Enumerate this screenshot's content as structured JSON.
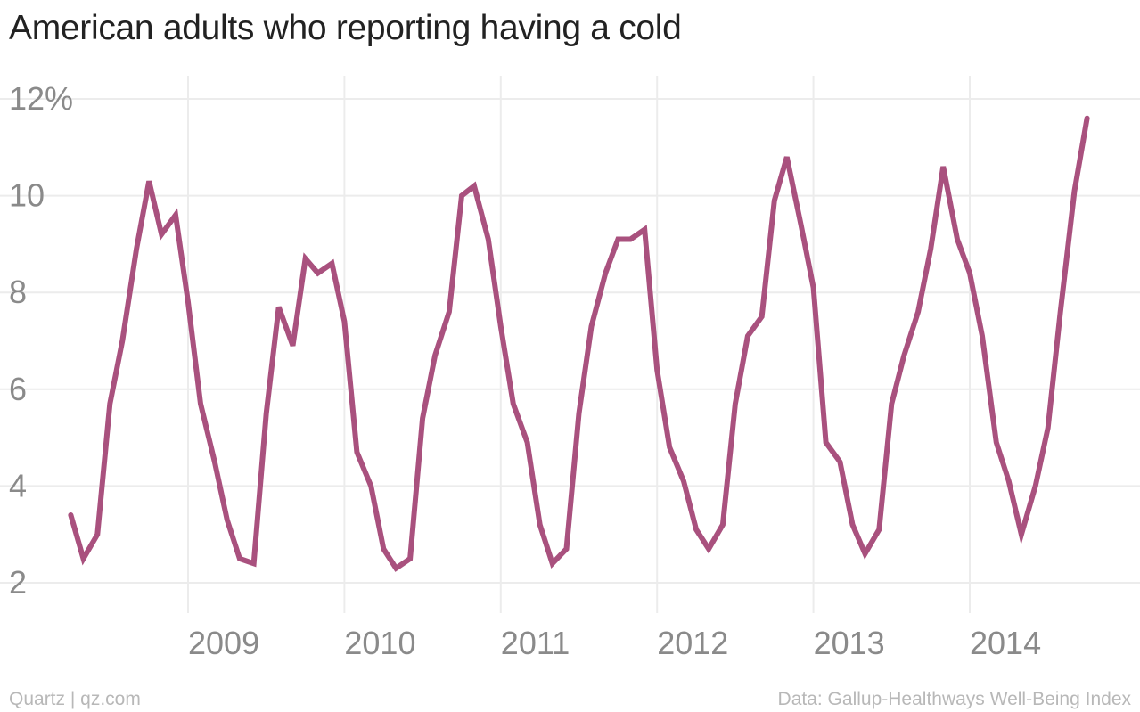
{
  "chart_data": {
    "type": "line",
    "title": "American adults who reporting having a cold",
    "xlabel": "",
    "ylabel": "",
    "ylim": [
      2,
      12
    ],
    "yticks": [
      2,
      4,
      6,
      8,
      10,
      12
    ],
    "ytick_labels": [
      "2",
      "4",
      "6",
      "8",
      "10",
      "12%"
    ],
    "xlim": [
      2008.0,
      2014.88
    ],
    "xticks": [
      2009,
      2010,
      2011,
      2012,
      2013,
      2014
    ],
    "xtick_labels": [
      "2009",
      "2010",
      "2011",
      "2012",
      "2013",
      "2014"
    ],
    "grid": true,
    "legend": "none",
    "series": [
      {
        "color": "#a9517e",
        "points": [
          [
            2008.25,
            3.4
          ],
          [
            2008.33,
            2.5
          ],
          [
            2008.42,
            3.0
          ],
          [
            2008.5,
            5.7
          ],
          [
            2008.58,
            7.0
          ],
          [
            2008.67,
            8.9
          ],
          [
            2008.75,
            10.3
          ],
          [
            2008.83,
            9.2
          ],
          [
            2008.92,
            9.6
          ],
          [
            2009.0,
            7.8
          ],
          [
            2009.08,
            5.7
          ],
          [
            2009.17,
            4.5
          ],
          [
            2009.25,
            3.3
          ],
          [
            2009.33,
            2.5
          ],
          [
            2009.42,
            2.4
          ],
          [
            2009.5,
            5.5
          ],
          [
            2009.58,
            7.7
          ],
          [
            2009.67,
            6.9
          ],
          [
            2009.75,
            8.7
          ],
          [
            2009.83,
            8.4
          ],
          [
            2009.92,
            8.6
          ],
          [
            2010.0,
            7.4
          ],
          [
            2010.08,
            4.7
          ],
          [
            2010.17,
            4.0
          ],
          [
            2010.25,
            2.7
          ],
          [
            2010.33,
            2.3
          ],
          [
            2010.42,
            2.5
          ],
          [
            2010.5,
            5.4
          ],
          [
            2010.58,
            6.7
          ],
          [
            2010.67,
            7.6
          ],
          [
            2010.75,
            10.0
          ],
          [
            2010.83,
            10.2
          ],
          [
            2010.92,
            9.1
          ],
          [
            2011.0,
            7.3
          ],
          [
            2011.08,
            5.7
          ],
          [
            2011.17,
            4.9
          ],
          [
            2011.25,
            3.2
          ],
          [
            2011.33,
            2.4
          ],
          [
            2011.42,
            2.7
          ],
          [
            2011.5,
            5.5
          ],
          [
            2011.58,
            7.3
          ],
          [
            2011.67,
            8.4
          ],
          [
            2011.75,
            9.1
          ],
          [
            2011.83,
            9.1
          ],
          [
            2011.92,
            9.3
          ],
          [
            2012.0,
            6.4
          ],
          [
            2012.08,
            4.8
          ],
          [
            2012.17,
            4.1
          ],
          [
            2012.25,
            3.1
          ],
          [
            2012.33,
            2.7
          ],
          [
            2012.42,
            3.2
          ],
          [
            2012.5,
            5.7
          ],
          [
            2012.58,
            7.1
          ],
          [
            2012.67,
            7.5
          ],
          [
            2012.75,
            9.9
          ],
          [
            2012.83,
            10.8
          ],
          [
            2012.92,
            9.4
          ],
          [
            2013.0,
            8.1
          ],
          [
            2013.08,
            4.9
          ],
          [
            2013.17,
            4.5
          ],
          [
            2013.25,
            3.2
          ],
          [
            2013.33,
            2.6
          ],
          [
            2013.42,
            3.1
          ],
          [
            2013.5,
            5.7
          ],
          [
            2013.58,
            6.7
          ],
          [
            2013.67,
            7.6
          ],
          [
            2013.75,
            8.9
          ],
          [
            2013.83,
            10.6
          ],
          [
            2013.92,
            9.1
          ],
          [
            2014.0,
            8.4
          ],
          [
            2014.08,
            7.1
          ],
          [
            2014.17,
            4.9
          ],
          [
            2014.25,
            4.1
          ],
          [
            2014.33,
            3.0
          ],
          [
            2014.42,
            4.0
          ],
          [
            2014.5,
            5.2
          ],
          [
            2014.58,
            7.6
          ],
          [
            2014.67,
            10.1
          ],
          [
            2014.75,
            11.6
          ]
        ]
      }
    ]
  },
  "footer": {
    "credit": "Quartz | qz.com",
    "source": "Data: Gallup-Healthways Well-Being Index"
  }
}
